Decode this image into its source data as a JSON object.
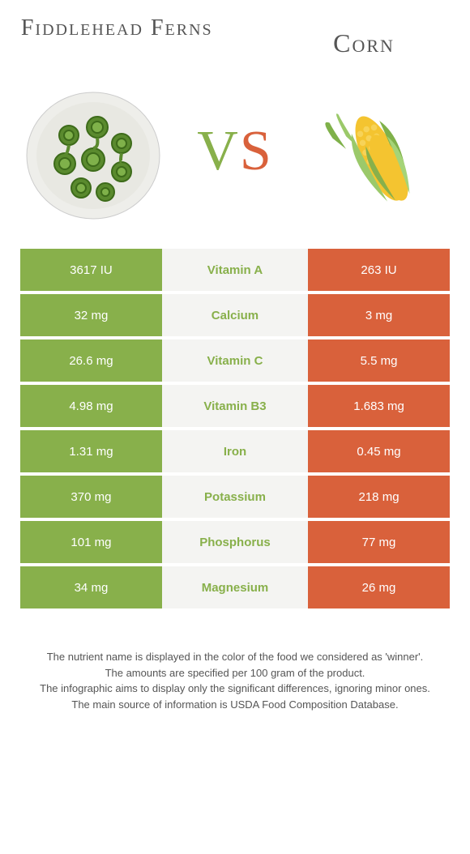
{
  "foods": {
    "left": {
      "name": "Fiddlehead Ferns",
      "color": "#88b04b"
    },
    "right": {
      "name": "Corn",
      "color": "#d9613b"
    }
  },
  "vs_label": {
    "v": "V",
    "s": "S"
  },
  "table": {
    "left_bg": "#88b04b",
    "mid_bg": "#f4f4f2",
    "right_bg": "#d9613b",
    "rows": [
      {
        "left": "3617 IU",
        "nutrient": "Vitamin A",
        "right": "263 IU",
        "winner": "left"
      },
      {
        "left": "32 mg",
        "nutrient": "Calcium",
        "right": "3 mg",
        "winner": "left"
      },
      {
        "left": "26.6 mg",
        "nutrient": "Vitamin C",
        "right": "5.5 mg",
        "winner": "left"
      },
      {
        "left": "4.98 mg",
        "nutrient": "Vitamin B3",
        "right": "1.683 mg",
        "winner": "left"
      },
      {
        "left": "1.31 mg",
        "nutrient": "Iron",
        "right": "0.45 mg",
        "winner": "left"
      },
      {
        "left": "370 mg",
        "nutrient": "Potassium",
        "right": "218 mg",
        "winner": "left"
      },
      {
        "left": "101 mg",
        "nutrient": "Phosphorus",
        "right": "77 mg",
        "winner": "left"
      },
      {
        "left": "34 mg",
        "nutrient": "Magnesium",
        "right": "26 mg",
        "winner": "left"
      }
    ]
  },
  "footnotes": [
    "The nutrient name is displayed in the color of the food we considered as 'winner'.",
    "The amounts are specified per 100 gram of the product.",
    "The infographic aims to display only the significant differences, ignoring minor ones.",
    "The main source of information is USDA Food Composition Database."
  ]
}
